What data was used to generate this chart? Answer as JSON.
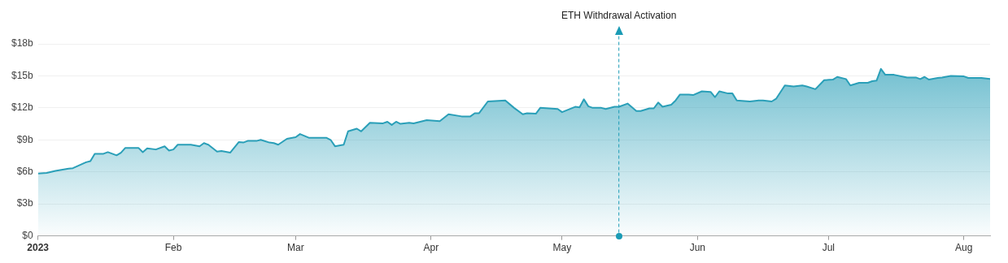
{
  "chart_data": {
    "type": "area",
    "x": [
      "2023-01-01",
      "2023-01-03",
      "2023-01-05",
      "2023-01-08",
      "2023-01-09",
      "2023-01-12",
      "2023-01-13",
      "2023-01-14",
      "2023-01-16",
      "2023-01-17",
      "2023-01-19",
      "2023-01-20",
      "2023-01-21",
      "2023-01-24",
      "2023-01-25",
      "2023-01-26",
      "2023-01-28",
      "2023-01-30",
      "2023-01-31",
      "2023-02-01",
      "2023-02-02",
      "2023-02-05",
      "2023-02-07",
      "2023-02-08",
      "2023-02-09",
      "2023-02-11",
      "2023-02-12",
      "2023-02-14",
      "2023-02-16",
      "2023-02-17",
      "2023-02-18",
      "2023-02-20",
      "2023-02-21",
      "2023-02-23",
      "2023-02-24",
      "2023-02-25",
      "2023-02-27",
      "2023-03-01",
      "2023-03-02",
      "2023-03-04",
      "2023-03-08",
      "2023-03-09",
      "2023-03-10",
      "2023-03-12",
      "2023-03-13",
      "2023-03-15",
      "2023-03-16",
      "2023-03-18",
      "2023-03-21",
      "2023-03-22",
      "2023-03-23",
      "2023-03-24",
      "2023-03-25",
      "2023-03-27",
      "2023-03-28",
      "2023-03-31",
      "2023-04-03",
      "2023-04-05",
      "2023-04-08",
      "2023-04-10",
      "2023-04-11",
      "2023-04-12",
      "2023-04-14",
      "2023-04-18",
      "2023-04-20",
      "2023-04-22",
      "2023-04-23",
      "2023-04-25",
      "2023-04-26",
      "2023-04-30",
      "2023-05-01",
      "2023-05-04",
      "2023-05-05",
      "2023-05-06",
      "2023-05-07",
      "2023-05-08",
      "2023-05-10",
      "2023-05-11",
      "2023-05-13",
      "2023-05-14",
      "2023-05-16",
      "2023-05-18",
      "2023-05-19",
      "2023-05-21",
      "2023-05-22",
      "2023-05-23",
      "2023-05-24",
      "2023-05-26",
      "2023-05-27",
      "2023-05-28",
      "2023-05-30",
      "2023-05-31",
      "2023-06-02",
      "2023-06-04",
      "2023-06-05",
      "2023-06-06",
      "2023-06-08",
      "2023-06-09",
      "2023-06-10",
      "2023-06-13",
      "2023-06-15",
      "2023-06-16",
      "2023-06-18",
      "2023-06-19",
      "2023-06-21",
      "2023-06-23",
      "2023-06-25",
      "2023-06-26",
      "2023-06-28",
      "2023-06-30",
      "2023-07-02",
      "2023-07-03",
      "2023-07-05",
      "2023-07-06",
      "2023-07-08",
      "2023-07-10",
      "2023-07-11",
      "2023-07-12",
      "2023-07-13",
      "2023-07-14",
      "2023-07-16",
      "2023-07-19",
      "2023-07-21",
      "2023-07-22",
      "2023-07-23",
      "2023-07-24",
      "2023-07-26",
      "2023-07-27",
      "2023-07-29",
      "2023-08-01",
      "2023-08-02",
      "2023-08-05",
      "2023-08-07"
    ],
    "series": [
      {
        "color": "#2a9fb8",
        "values": [
          5.85,
          5.9,
          6.1,
          6.3,
          6.35,
          6.9,
          7.0,
          7.7,
          7.7,
          7.85,
          7.55,
          7.8,
          8.25,
          8.25,
          7.85,
          8.2,
          8.1,
          8.4,
          8.0,
          8.1,
          8.55,
          8.55,
          8.4,
          8.7,
          8.55,
          7.9,
          7.95,
          7.8,
          8.8,
          8.75,
          8.9,
          8.9,
          9.0,
          8.75,
          8.7,
          8.55,
          9.1,
          9.25,
          9.55,
          9.2,
          9.2,
          9.0,
          8.4,
          8.55,
          9.8,
          10.05,
          9.8,
          10.6,
          10.55,
          10.7,
          10.4,
          10.7,
          10.5,
          10.6,
          10.55,
          10.85,
          10.75,
          11.4,
          11.2,
          11.2,
          11.5,
          11.5,
          12.6,
          12.7,
          12.0,
          11.4,
          11.5,
          11.45,
          12.0,
          11.9,
          11.6,
          12.1,
          12.05,
          12.8,
          12.15,
          12.0,
          12.0,
          11.9,
          12.1,
          12.1,
          12.4,
          11.7,
          11.7,
          11.95,
          11.95,
          12.5,
          12.1,
          12.3,
          12.7,
          13.25,
          13.25,
          13.2,
          13.55,
          13.5,
          13.0,
          13.55,
          13.35,
          13.35,
          12.7,
          12.6,
          12.7,
          12.7,
          12.6,
          12.85,
          14.1,
          14.0,
          14.1,
          14.0,
          13.75,
          14.6,
          14.65,
          14.9,
          14.7,
          14.1,
          14.35,
          14.35,
          14.5,
          14.55,
          15.65,
          15.1,
          15.1,
          14.85,
          14.85,
          14.7,
          14.9,
          14.65,
          14.8,
          14.85,
          15.0,
          14.95,
          14.8,
          14.8,
          14.7
        ]
      }
    ],
    "xlim": [
      "2023-01-01",
      "2023-08-07"
    ],
    "xticks": [
      {
        "value": "2023-01-01",
        "label": "2023"
      },
      {
        "value": "2023-02-01",
        "label": "Feb"
      },
      {
        "value": "2023-03-01",
        "label": "Mar"
      },
      {
        "value": "2023-04-01",
        "label": "Apr"
      },
      {
        "value": "2023-05-01",
        "label": "May"
      },
      {
        "value": "2023-06-01",
        "label": "Jun"
      },
      {
        "value": "2023-07-01",
        "label": "Jul"
      },
      {
        "value": "2023-08-01",
        "label": "Aug"
      }
    ],
    "ylim": [
      0,
      18
    ],
    "yticks": [
      {
        "value": 0,
        "label": "$0"
      },
      {
        "value": 3,
        "label": "$3b"
      },
      {
        "value": 6,
        "label": "$6b"
      },
      {
        "value": 9,
        "label": "$9b"
      },
      {
        "value": 12,
        "label": "$12b"
      },
      {
        "value": 15,
        "label": "$15b"
      },
      {
        "value": 18,
        "label": "$18b"
      }
    ],
    "grid": "y",
    "legend": false,
    "marker": "none",
    "line_style": "solid",
    "ref_lines": [
      {
        "axis": "x",
        "value": "2023-05-14",
        "label": "ETH Withdrawal Activation",
        "color": "#1a9bb5",
        "line_style": "dashed"
      }
    ]
  }
}
